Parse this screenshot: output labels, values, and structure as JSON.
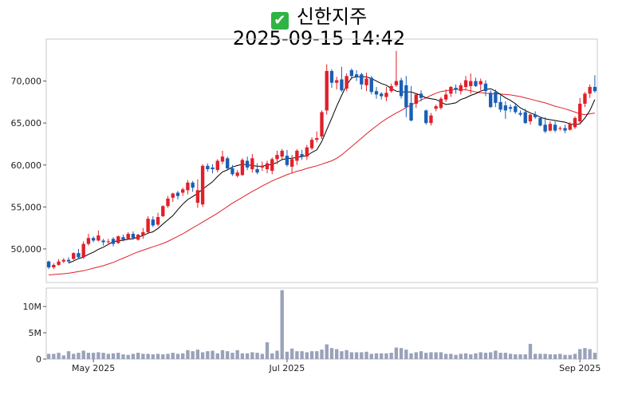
{
  "title": {
    "icon": "check-icon",
    "name": "신한지주",
    "datetime": "2025-09-15 14:42"
  },
  "chart_data": {
    "type": "candlestick",
    "colors": {
      "up": "#e0202a",
      "down": "#1a5fb4",
      "ma_short": "#000000",
      "ma_long": "#e0202a",
      "volume": "#9aa2ba"
    },
    "price_axis": {
      "ylim": [
        46000,
        75000
      ],
      "ticks": [
        50000,
        55000,
        60000,
        65000,
        70000
      ],
      "tick_labels": [
        "50,000",
        "55,000",
        "60,000",
        "65,000",
        "70,000"
      ]
    },
    "volume_axis": {
      "ylim": [
        0,
        13500000
      ],
      "ticks": [
        0,
        5000000,
        10000000
      ],
      "tick_labels": [
        "0",
        "5M",
        "10M"
      ]
    },
    "x_labels": [
      {
        "index": 9,
        "label": "May 2025"
      },
      {
        "index": 48,
        "label": "Jul 2025"
      },
      {
        "index": 107,
        "label": "Sep 2025"
      }
    ],
    "ohlc": [
      [
        48500,
        48600,
        47600,
        47800
      ],
      [
        47800,
        48300,
        47600,
        48100
      ],
      [
        48100,
        48800,
        48000,
        48500
      ],
      [
        48500,
        48900,
        48300,
        48700
      ],
      [
        48700,
        49000,
        48300,
        48500
      ],
      [
        48800,
        49600,
        48700,
        49500
      ],
      [
        49500,
        50000,
        48800,
        49000
      ],
      [
        49000,
        50900,
        48800,
        50600
      ],
      [
        50600,
        51800,
        50400,
        51300
      ],
      [
        51300,
        51500,
        50800,
        51000
      ],
      [
        51000,
        52200,
        50900,
        51600
      ],
      [
        51000,
        51200,
        50400,
        50800
      ],
      [
        50800,
        51200,
        50500,
        50900
      ],
      [
        51200,
        51400,
        50300,
        50600
      ],
      [
        50700,
        51600,
        50600,
        51500
      ],
      [
        51400,
        51700,
        50900,
        51100
      ],
      [
        51200,
        52000,
        51100,
        51800
      ],
      [
        51800,
        52100,
        51100,
        51300
      ],
      [
        51100,
        51800,
        51000,
        51700
      ],
      [
        51600,
        52500,
        51200,
        52000
      ],
      [
        52000,
        53900,
        51900,
        53600
      ],
      [
        53500,
        53900,
        52600,
        52800
      ],
      [
        52900,
        54300,
        52700,
        53800
      ],
      [
        53900,
        55200,
        53800,
        55100
      ],
      [
        55100,
        56300,
        54900,
        56000
      ],
      [
        56100,
        56700,
        55600,
        56600
      ],
      [
        56700,
        56900,
        55900,
        56300
      ],
      [
        56700,
        57300,
        56300,
        57100
      ],
      [
        57000,
        58200,
        56500,
        57900
      ],
      [
        57900,
        58100,
        56800,
        57300
      ],
      [
        55500,
        58300,
        54900,
        57000
      ],
      [
        55300,
        60100,
        55000,
        59900
      ],
      [
        59900,
        60200,
        59200,
        59500
      ],
      [
        59700,
        60100,
        59000,
        59500
      ],
      [
        59400,
        60700,
        59100,
        60500
      ],
      [
        60400,
        61700,
        60100,
        61000
      ],
      [
        60800,
        61000,
        59500,
        59600
      ],
      [
        59600,
        60000,
        58700,
        58900
      ],
      [
        58700,
        59400,
        58500,
        59100
      ],
      [
        58800,
        60800,
        58700,
        60600
      ],
      [
        60500,
        61000,
        59400,
        59700
      ],
      [
        59500,
        61300,
        59100,
        60800
      ],
      [
        59500,
        60200,
        58900,
        59100
      ],
      [
        59700,
        60400,
        59300,
        59900
      ],
      [
        59500,
        60500,
        59000,
        60200
      ],
      [
        59300,
        60900,
        58900,
        60700
      ],
      [
        60700,
        61700,
        60100,
        61200
      ],
      [
        61000,
        61900,
        60700,
        61700
      ],
      [
        61100,
        61800,
        59800,
        60000
      ],
      [
        59800,
        61200,
        59000,
        60700
      ],
      [
        60500,
        61900,
        60000,
        61700
      ],
      [
        61300,
        61800,
        60600,
        61000
      ],
      [
        61000,
        62400,
        60600,
        62100
      ],
      [
        62000,
        63300,
        61800,
        63000
      ],
      [
        63000,
        64000,
        62700,
        63200
      ],
      [
        63400,
        66500,
        63100,
        66300
      ],
      [
        66500,
        72000,
        66000,
        71200
      ],
      [
        71200,
        71400,
        69200,
        69800
      ],
      [
        69800,
        70500,
        69000,
        70100
      ],
      [
        70200,
        71700,
        68700,
        68900
      ],
      [
        69100,
        70900,
        68800,
        70600
      ],
      [
        71300,
        71500,
        70200,
        70600
      ],
      [
        70800,
        71300,
        70000,
        70500
      ],
      [
        70800,
        71000,
        69000,
        69600
      ],
      [
        69500,
        71000,
        68800,
        70300
      ],
      [
        70400,
        70600,
        68400,
        68700
      ],
      [
        68800,
        69300,
        67900,
        68400
      ],
      [
        68500,
        68700,
        67800,
        68200
      ],
      [
        68100,
        69300,
        67600,
        68600
      ],
      [
        68800,
        69700,
        68600,
        69400
      ],
      [
        69500,
        73600,
        69300,
        70000
      ],
      [
        70100,
        70400,
        67900,
        68200
      ],
      [
        69500,
        70600,
        65700,
        66900
      ],
      [
        67400,
        69400,
        65200,
        65300
      ],
      [
        67300,
        68600,
        66800,
        68400
      ],
      [
        68500,
        68900,
        67600,
        68000
      ],
      [
        66500,
        66600,
        64800,
        65000
      ],
      [
        65000,
        66200,
        64700,
        65900
      ],
      [
        66700,
        67200,
        66400,
        67000
      ],
      [
        66800,
        68100,
        66600,
        67900
      ],
      [
        67800,
        69000,
        67500,
        68400
      ],
      [
        68500,
        69400,
        68100,
        69300
      ],
      [
        69200,
        69600,
        68500,
        69000
      ],
      [
        68800,
        69800,
        68400,
        69500
      ],
      [
        69300,
        70600,
        69000,
        70100
      ],
      [
        69400,
        70900,
        68500,
        70000
      ],
      [
        70000,
        70400,
        69300,
        69400
      ],
      [
        69600,
        70300,
        68900,
        70000
      ],
      [
        69700,
        70100,
        68200,
        68800
      ],
      [
        68600,
        68900,
        66800,
        66900
      ],
      [
        68700,
        69000,
        66900,
        67400
      ],
      [
        67500,
        68300,
        66300,
        66600
      ],
      [
        67100,
        67600,
        65500,
        66500
      ],
      [
        66900,
        67200,
        66300,
        66700
      ],
      [
        67000,
        67400,
        66100,
        66300
      ],
      [
        66200,
        66500,
        65800,
        66000
      ],
      [
        66300,
        66700,
        64900,
        65000
      ],
      [
        65200,
        66100,
        64800,
        66000
      ],
      [
        66000,
        66400,
        65500,
        65700
      ],
      [
        65600,
        65700,
        64600,
        64700
      ],
      [
        64800,
        65700,
        63800,
        64000
      ],
      [
        64100,
        65200,
        64000,
        64900
      ],
      [
        64800,
        65200,
        63900,
        64100
      ],
      [
        64300,
        64600,
        64100,
        64400
      ],
      [
        64400,
        64800,
        63800,
        64100
      ],
      [
        64200,
        65100,
        64100,
        64900
      ],
      [
        64500,
        65800,
        64300,
        65600
      ],
      [
        65200,
        68000,
        64800,
        67300
      ],
      [
        67300,
        68700,
        66900,
        68500
      ],
      [
        68500,
        69600,
        68000,
        69300
      ],
      [
        69300,
        70700,
        68600,
        68800
      ]
    ],
    "ma_short": [
      null,
      null,
      null,
      null,
      48320,
      48560,
      48840,
      49020,
      49360,
      49600,
      49960,
      50200,
      50540,
      50860,
      50960,
      51040,
      51140,
      51220,
      51420,
      51580,
      51880,
      52040,
      52440,
      52960,
      53460,
      53960,
      54680,
      55340,
      55880,
      56240,
      56620,
      57120,
      57560,
      58000,
      58640,
      59180,
      59420,
      59760,
      59940,
      60080,
      60020,
      59940,
      59840,
      59860,
      59980,
      60080,
      60300,
      60640,
      60780,
      60800,
      60900,
      61000,
      61100,
      61500,
      61800,
      62800,
      64200,
      65600,
      67000,
      68300,
      69500,
      70400,
      70500,
      70500,
      70500,
      70300,
      70000,
      69700,
      69500,
      69100,
      68800,
      68700,
      68700,
      68700,
      68500,
      68300,
      68000,
      67900,
      67800,
      67500,
      67200,
      67300,
      67400,
      67800,
      68000,
      68300,
      68500,
      68800,
      69000,
      69100,
      68800,
      68400,
      68000,
      67700,
      67300,
      66800,
      66500,
      66200,
      66000,
      65700,
      65500,
      65400,
      65300,
      65200,
      65100,
      64900,
      64800,
      64900,
      65600,
      66500,
      67800
    ],
    "ma_long": [
      46900,
      46950,
      47000,
      47050,
      47100,
      47200,
      47300,
      47400,
      47550,
      47700,
      47850,
      48000,
      48200,
      48400,
      48650,
      48900,
      49150,
      49400,
      49650,
      49850,
      50050,
      50250,
      50450,
      50650,
      50900,
      51200,
      51500,
      51800,
      52150,
      52500,
      52850,
      53200,
      53550,
      53900,
      54250,
      54650,
      55050,
      55450,
      55800,
      56150,
      56500,
      56850,
      57150,
      57500,
      57800,
      58100,
      58350,
      58600,
      58850,
      59050,
      59250,
      59400,
      59600,
      59750,
      59900,
      60100,
      60300,
      60500,
      60800,
      61200,
      61700,
      62200,
      62700,
      63200,
      63700,
      64200,
      64650,
      65100,
      65500,
      65850,
      66200,
      66500,
      66850,
      67150,
      67450,
      67750,
      68000,
      68300,
      68550,
      68750,
      68850,
      68950,
      69000,
      69000,
      68950,
      68850,
      68700,
      68600,
      68550,
      68500,
      68500,
      68450,
      68400,
      68350,
      68250,
      68150,
      68000,
      67850,
      67700,
      67550,
      67400,
      67200,
      67000,
      66850,
      66700,
      66500,
      66300,
      66100,
      66000,
      66100,
      66200
    ],
    "volume": [
      1000000,
      1000000,
      1200000,
      700000,
      1500000,
      1000000,
      1200000,
      1600000,
      1200000,
      1200000,
      1300000,
      1200000,
      1000000,
      1100000,
      1200000,
      900000,
      800000,
      1000000,
      1200000,
      1000000,
      1000000,
      900000,
      1000000,
      900000,
      1000000,
      1200000,
      1000000,
      1100000,
      1700000,
      1500000,
      1800000,
      1300000,
      1500000,
      1600000,
      1100000,
      1700000,
      1500000,
      1200000,
      1700000,
      1100000,
      1100000,
      1300000,
      1200000,
      1000000,
      3200000,
      1100000,
      1600000,
      13100000,
      1400000,
      2000000,
      1500000,
      1500000,
      1300000,
      1500000,
      1500000,
      1800000,
      2800000,
      2100000,
      1900000,
      1500000,
      1700000,
      1300000,
      1300000,
      1300000,
      1400000,
      1000000,
      1100000,
      1100000,
      1100000,
      1200000,
      2200000,
      2100000,
      1800000,
      1100000,
      1300000,
      1500000,
      1200000,
      1300000,
      1300000,
      1300000,
      1000000,
      1000000,
      800000,
      1000000,
      1100000,
      900000,
      1100000,
      1300000,
      1200000,
      1300000,
      1600000,
      1200000,
      1200000,
      1000000,
      900000,
      900000,
      900000,
      2900000,
      1000000,
      1000000,
      1000000,
      900000,
      900000,
      1000000,
      800000,
      800000,
      1000000,
      1900000,
      2100000,
      1900000,
      1200000
    ]
  }
}
